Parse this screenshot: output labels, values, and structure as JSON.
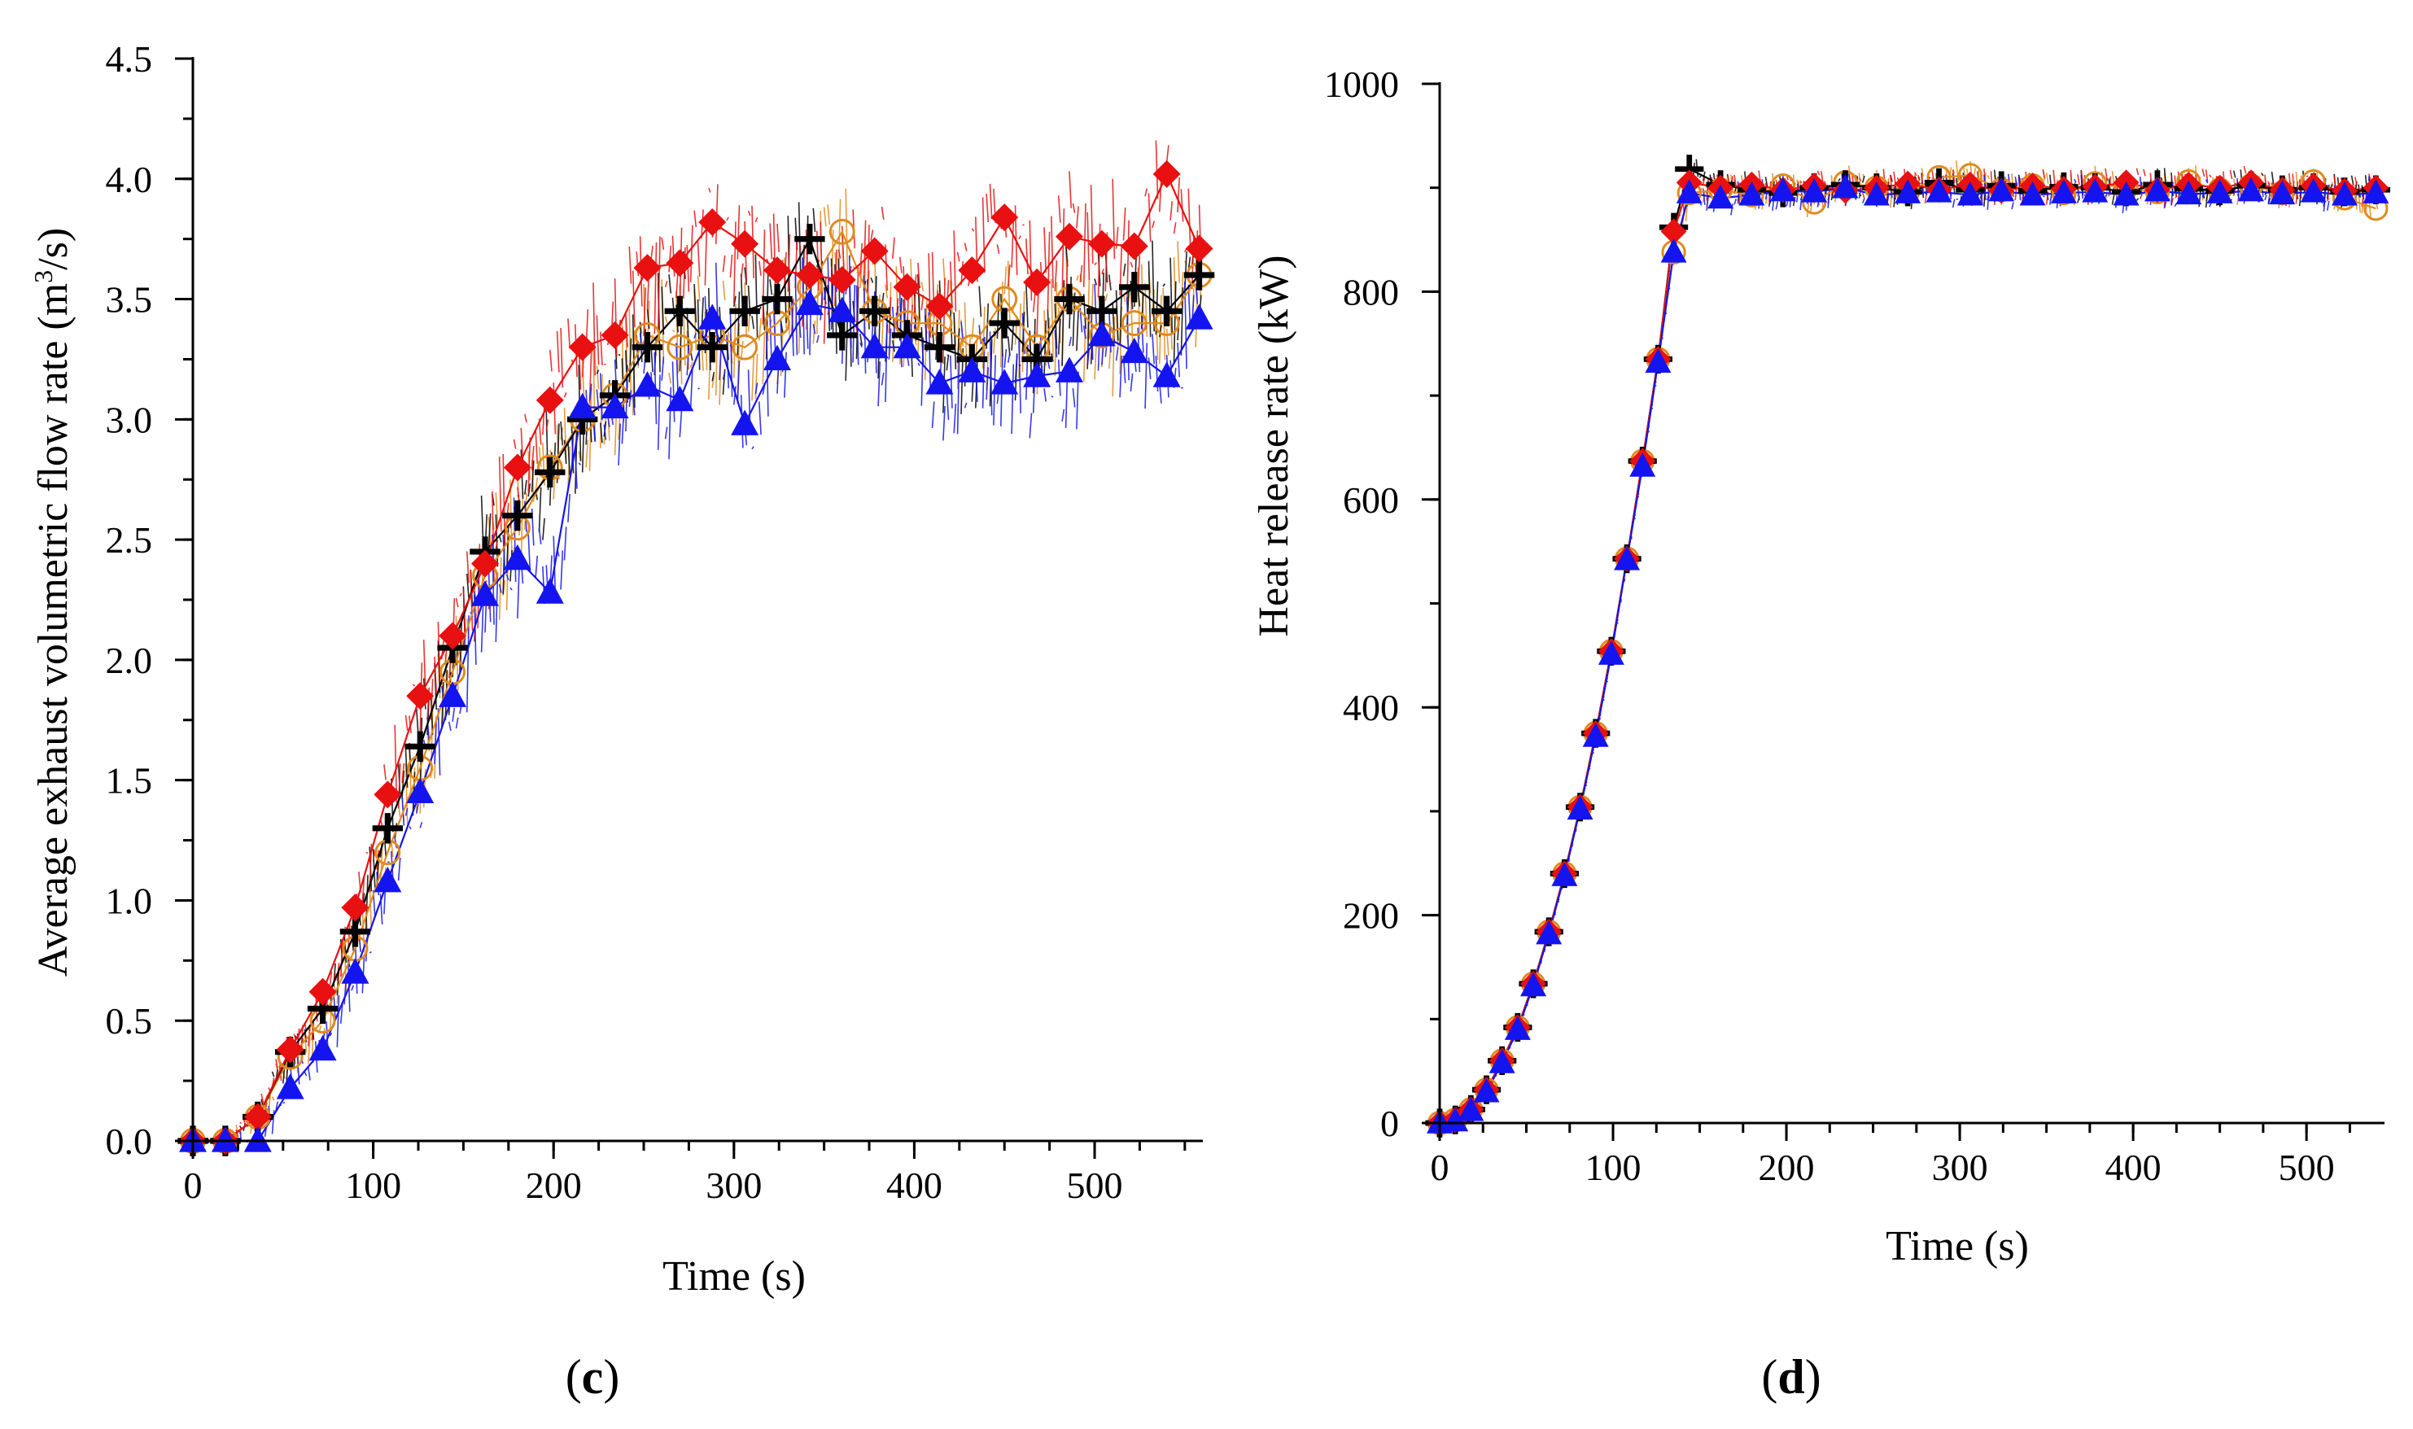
{
  "chart_data": [
    {
      "type": "line",
      "panel": "c",
      "title": "",
      "xlabel": "Time (s)",
      "ylabel": "Average exhaust volumetric flow rate (m³/s)",
      "xlim": [
        0,
        560
      ],
      "ylim": [
        0,
        4.5
      ],
      "xticks": [
        0,
        100,
        200,
        300,
        400,
        500
      ],
      "xtick_labels": [
        "0",
        "100",
        "200",
        "300",
        "400",
        "500"
      ],
      "yticks": [
        0,
        0.5,
        1.0,
        1.5,
        2.0,
        2.5,
        3.0,
        3.5,
        4.0,
        4.5
      ],
      "ytick_labels": [
        "0.0",
        "0.5",
        "1.0",
        "1.5",
        "2.0",
        "2.5",
        "3.0",
        "3.5",
        "4.0",
        "4.5"
      ],
      "grid": false,
      "series": [
        {
          "name": "orange circles",
          "marker": "circle",
          "color": "#E08A1E",
          "x": [
            0,
            18,
            36,
            54,
            72,
            90,
            108,
            126,
            144,
            162,
            180,
            198,
            216,
            234,
            252,
            270,
            288,
            306,
            324,
            342,
            360,
            378,
            396,
            414,
            432,
            450,
            468,
            486,
            504,
            522,
            540,
            558
          ],
          "y": [
            0,
            0,
            0.1,
            0.35,
            0.5,
            0.8,
            1.2,
            1.55,
            1.95,
            2.35,
            2.55,
            2.8,
            3.0,
            3.1,
            3.35,
            3.3,
            3.35,
            3.3,
            3.4,
            3.55,
            3.78,
            3.45,
            3.4,
            3.4,
            3.3,
            3.5,
            3.3,
            3.5,
            3.35,
            3.4,
            3.4,
            3.6
          ]
        },
        {
          "name": "black crosses",
          "marker": "plus",
          "color": "#000000",
          "x": [
            0,
            18,
            36,
            54,
            72,
            90,
            108,
            126,
            144,
            162,
            180,
            198,
            216,
            234,
            252,
            270,
            288,
            306,
            324,
            342,
            360,
            378,
            396,
            414,
            432,
            450,
            468,
            486,
            504,
            522,
            540,
            558
          ],
          "y": [
            0,
            0,
            0.1,
            0.37,
            0.55,
            0.87,
            1.3,
            1.64,
            2.05,
            2.45,
            2.6,
            2.78,
            3.0,
            3.1,
            3.3,
            3.45,
            3.3,
            3.45,
            3.5,
            3.75,
            3.35,
            3.45,
            3.35,
            3.3,
            3.25,
            3.4,
            3.25,
            3.5,
            3.45,
            3.55,
            3.45,
            3.6
          ]
        },
        {
          "name": "red diamonds",
          "marker": "diamond",
          "color": "#E81010",
          "x": [
            0,
            18,
            36,
            54,
            72,
            90,
            108,
            126,
            144,
            162,
            180,
            198,
            216,
            234,
            252,
            270,
            288,
            306,
            324,
            342,
            360,
            378,
            396,
            414,
            432,
            450,
            468,
            486,
            504,
            522,
            540,
            558
          ],
          "y": [
            0,
            0,
            0.1,
            0.38,
            0.62,
            0.97,
            1.44,
            1.85,
            2.1,
            2.4,
            2.8,
            3.08,
            3.3,
            3.35,
            3.63,
            3.65,
            3.82,
            3.73,
            3.62,
            3.6,
            3.58,
            3.7,
            3.55,
            3.47,
            3.62,
            3.84,
            3.57,
            3.76,
            3.73,
            3.72,
            4.02,
            3.71
          ]
        },
        {
          "name": "blue triangles",
          "marker": "triangle",
          "color": "#1414F0",
          "x": [
            0,
            18,
            36,
            54,
            72,
            90,
            108,
            126,
            144,
            162,
            180,
            198,
            216,
            234,
            252,
            270,
            288,
            306,
            324,
            342,
            360,
            378,
            396,
            414,
            432,
            450,
            468,
            486,
            504,
            522,
            540,
            558
          ],
          "y": [
            0,
            0,
            0,
            0.22,
            0.38,
            0.7,
            1.08,
            1.45,
            1.85,
            2.27,
            2.42,
            2.28,
            3.05,
            3.05,
            3.14,
            3.08,
            3.42,
            2.98,
            3.25,
            3.48,
            3.45,
            3.3,
            3.3,
            3.15,
            3.2,
            3.15,
            3.18,
            3.2,
            3.35,
            3.28,
            3.18,
            3.42
          ]
        }
      ]
    },
    {
      "type": "line",
      "panel": "d",
      "title": "",
      "xlabel": "Time (s)",
      "ylabel": "Heat release rate (kW)",
      "xlim": [
        0,
        545
      ],
      "ylim": [
        0,
        1000
      ],
      "xticks": [
        0,
        100,
        200,
        300,
        400,
        500
      ],
      "xtick_labels": [
        "0",
        "100",
        "200",
        "300",
        "400",
        "500"
      ],
      "yticks": [
        0,
        200,
        400,
        600,
        800,
        1000
      ],
      "ytick_labels": [
        "0",
        "200",
        "400",
        "600",
        "800",
        "1000"
      ],
      "grid": false,
      "series": [
        {
          "name": "orange circles",
          "marker": "circle",
          "color": "#E08A1E",
          "x": [
            0,
            9,
            18,
            27,
            36,
            45,
            54,
            63,
            72,
            81,
            90,
            99,
            108,
            117,
            126,
            135,
            144,
            162,
            180,
            198,
            216,
            234,
            252,
            270,
            288,
            306,
            324,
            342,
            360,
            378,
            396,
            414,
            432,
            450,
            468,
            486,
            504,
            522,
            540
          ],
          "y": [
            0,
            3,
            13,
            32,
            60,
            92,
            134,
            184,
            240,
            304,
            375,
            454,
            543,
            637,
            735,
            838,
            895,
            898,
            893,
            902,
            886,
            905,
            900,
            896,
            910,
            912,
            898,
            902,
            895,
            904,
            900,
            896,
            906,
            898,
            902,
            895,
            906,
            890,
            880
          ]
        },
        {
          "name": "black crosses",
          "marker": "plus",
          "color": "#000000",
          "x": [
            0,
            9,
            18,
            27,
            36,
            45,
            54,
            63,
            72,
            81,
            90,
            99,
            108,
            117,
            126,
            135,
            144,
            162,
            180,
            198,
            216,
            234,
            252,
            270,
            288,
            306,
            324,
            342,
            360,
            378,
            396,
            414,
            432,
            450,
            468,
            486,
            504,
            522,
            540
          ],
          "y": [
            0,
            3,
            13,
            32,
            60,
            92,
            134,
            184,
            240,
            304,
            375,
            454,
            543,
            637,
            735,
            862,
            918,
            903,
            898,
            895,
            900,
            903,
            900,
            896,
            905,
            898,
            902,
            897,
            901,
            900,
            896,
            903,
            899,
            897,
            902,
            898,
            900,
            896,
            898
          ]
        },
        {
          "name": "red diamonds",
          "marker": "diamond",
          "color": "#E81010",
          "x": [
            0,
            9,
            18,
            27,
            36,
            45,
            54,
            63,
            72,
            81,
            90,
            99,
            108,
            117,
            126,
            135,
            144,
            162,
            180,
            198,
            216,
            234,
            252,
            270,
            288,
            306,
            324,
            342,
            360,
            378,
            396,
            414,
            432,
            450,
            468,
            486,
            504,
            522,
            540
          ],
          "y": [
            0,
            3,
            13,
            32,
            60,
            92,
            134,
            184,
            240,
            304,
            375,
            454,
            543,
            637,
            735,
            858,
            905,
            900,
            903,
            898,
            902,
            897,
            900,
            904,
            898,
            903,
            897,
            902,
            899,
            901,
            905,
            898,
            903,
            900,
            905,
            898,
            902,
            897,
            900
          ]
        },
        {
          "name": "blue triangles",
          "marker": "triangle",
          "color": "#1414F0",
          "x": [
            0,
            9,
            18,
            27,
            36,
            45,
            54,
            63,
            72,
            81,
            90,
            99,
            108,
            117,
            126,
            135,
            144,
            162,
            180,
            198,
            216,
            234,
            252,
            270,
            288,
            306,
            324,
            342,
            360,
            378,
            396,
            414,
            432,
            450,
            468,
            486,
            504,
            522,
            540
          ],
          "y": [
            0,
            2,
            12,
            30,
            58,
            90,
            132,
            182,
            238,
            302,
            372,
            451,
            542,
            632,
            732,
            838,
            895,
            890,
            893,
            897,
            896,
            900,
            893,
            895,
            896,
            893,
            897,
            893,
            895,
            896,
            893,
            897,
            894,
            895,
            897,
            894,
            896,
            893,
            895
          ]
        }
      ]
    }
  ],
  "panel_labels": {
    "c": "(c)",
    "d": "(d)"
  }
}
